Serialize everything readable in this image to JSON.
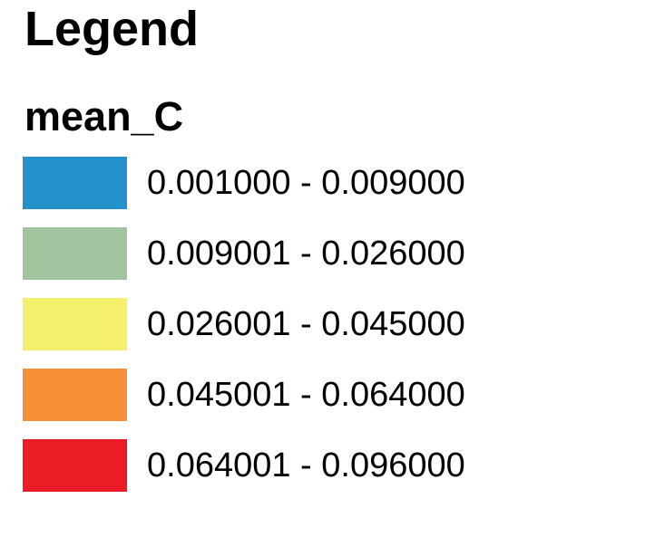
{
  "legend": {
    "title": "Legend",
    "field": "mean_C",
    "classes": [
      {
        "label": "0.001000 - 0.009000",
        "color": "#2491CB"
      },
      {
        "label": "0.009001 - 0.026000",
        "color": "#A1C49F"
      },
      {
        "label": "0.026001 - 0.045000",
        "color": "#F5F06C"
      },
      {
        "label": "0.045001 - 0.064000",
        "color": "#F78F38"
      },
      {
        "label": "0.064001 - 0.096000",
        "color": "#EB1C26"
      }
    ]
  }
}
